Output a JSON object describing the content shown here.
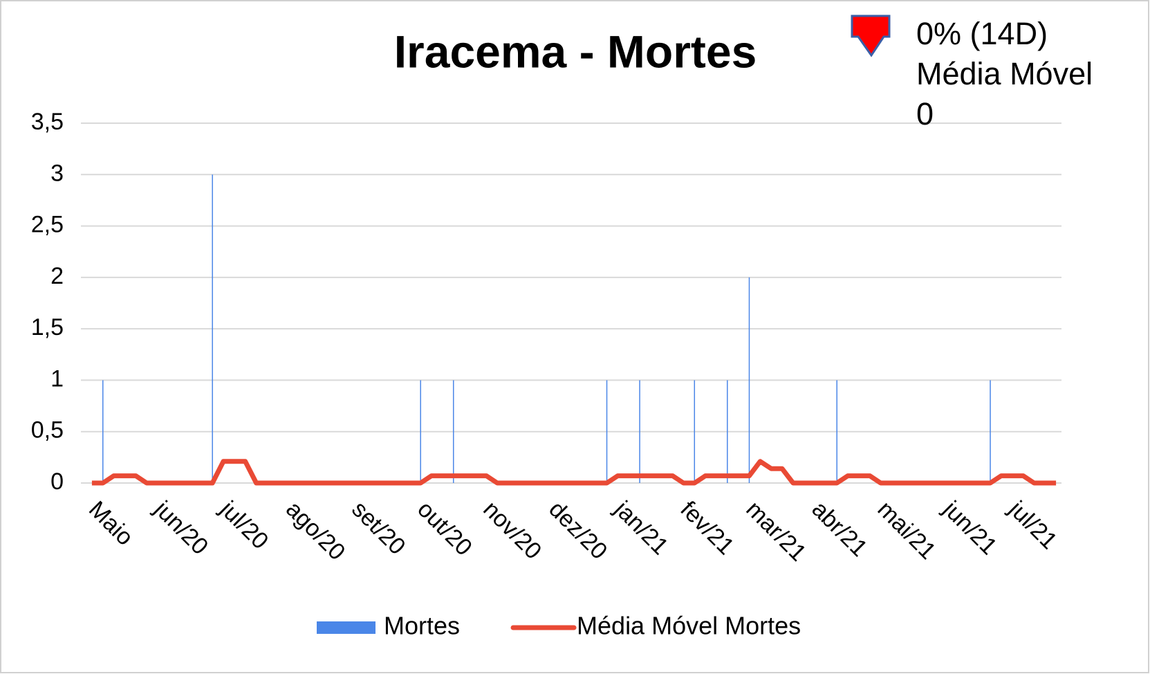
{
  "chart_data": {
    "type": "bar-line",
    "title": "Iracema - Mortes",
    "annotation": {
      "lines": [
        "0% (14D)",
        "Média Móvel",
        "0"
      ],
      "arrow_color": "#ff0000"
    },
    "categories": [
      null,
      null,
      "Maio",
      null,
      null,
      null,
      null,
      null,
      "jun/20",
      null,
      null,
      null,
      null,
      null,
      "jul/20",
      null,
      null,
      null,
      null,
      null,
      "ago/20",
      null,
      null,
      null,
      null,
      null,
      "set/20",
      null,
      null,
      null,
      null,
      null,
      "out/20",
      null,
      null,
      null,
      null,
      null,
      "nov/20",
      null,
      null,
      null,
      null,
      null,
      "dez/20",
      null,
      null,
      null,
      null,
      null,
      "jan/21",
      null,
      null,
      null,
      null,
      null,
      "fev/21",
      null,
      null,
      null,
      null,
      null,
      "mar/21",
      null,
      null,
      null,
      null,
      null,
      "abr/21",
      null,
      null,
      null,
      null,
      null,
      "mai/21",
      null,
      null,
      null,
      null,
      null,
      "jun/21",
      null,
      null,
      null,
      null,
      null,
      "jul/21",
      null,
      null
    ],
    "series": [
      {
        "name": "Mortes",
        "type": "bar",
        "color": "#4a86e8",
        "values": [
          0,
          1,
          0,
          0,
          0,
          0,
          0,
          0,
          0,
          0,
          0,
          3,
          0,
          0,
          0,
          0,
          0,
          0,
          0,
          0,
          0,
          0,
          0,
          0,
          0,
          0,
          0,
          0,
          0,
          0,
          1,
          0,
          0,
          1,
          0,
          0,
          0,
          0,
          0,
          0,
          0,
          0,
          0,
          0,
          0,
          0,
          0,
          1,
          0,
          0,
          1,
          0,
          0,
          0,
          0,
          1,
          0,
          0,
          1,
          0,
          2,
          0,
          0,
          0,
          0,
          0,
          0,
          0,
          1,
          0,
          0,
          0,
          0,
          0,
          0,
          0,
          0,
          0,
          0,
          0,
          0,
          0,
          1,
          0,
          0,
          0,
          0,
          0,
          0
        ]
      },
      {
        "name": "Média Móvel Mortes",
        "type": "line",
        "color": "#e94a35",
        "values": [
          0,
          0,
          0.07,
          0.07,
          0.07,
          0,
          0,
          0,
          0,
          0,
          0,
          0,
          0.21,
          0.21,
          0.21,
          0,
          0,
          0,
          0,
          0,
          0,
          0,
          0,
          0,
          0,
          0,
          0,
          0,
          0,
          0,
          0,
          0.07,
          0.07,
          0.07,
          0.07,
          0.07,
          0.07,
          0,
          0,
          0,
          0,
          0,
          0,
          0,
          0,
          0,
          0,
          0,
          0.07,
          0.07,
          0.07,
          0.07,
          0.07,
          0.07,
          0,
          0,
          0.07,
          0.07,
          0.07,
          0.07,
          0.07,
          0.21,
          0.14,
          0.14,
          0,
          0,
          0,
          0,
          0,
          0.07,
          0.07,
          0.07,
          0,
          0,
          0,
          0,
          0,
          0,
          0,
          0,
          0,
          0,
          0,
          0.07,
          0.07,
          0.07,
          0,
          0,
          0
        ]
      }
    ],
    "ylim": [
      0,
      3.5
    ],
    "yticks": [
      0,
      {
        "value": 0.5,
        "label": "0,5"
      },
      1,
      {
        "value": 1.5,
        "label": "1,5"
      },
      2,
      {
        "value": 2.5,
        "label": "2,5"
      },
      3,
      {
        "value": 3.5,
        "label": "3,5"
      }
    ],
    "grid": true,
    "legend": "bottom"
  }
}
